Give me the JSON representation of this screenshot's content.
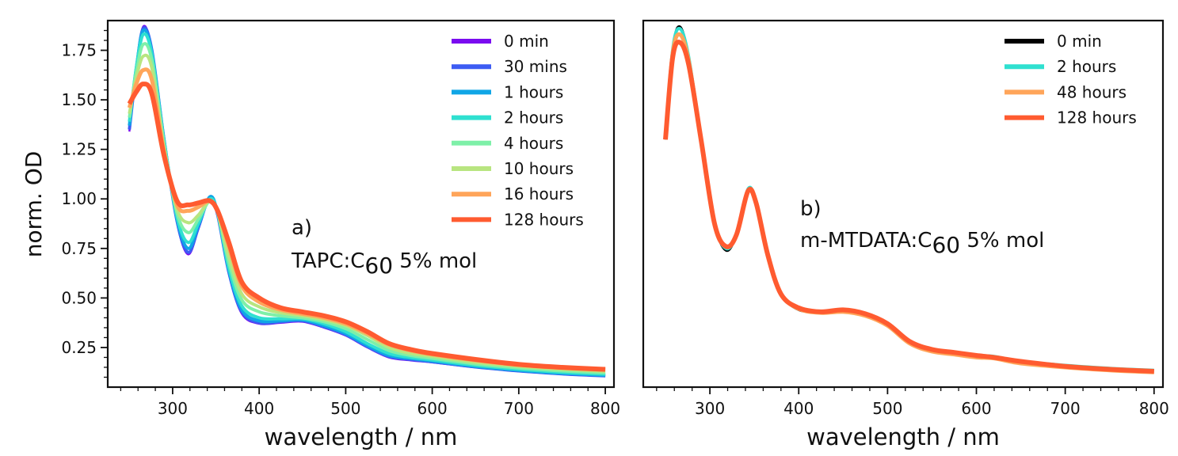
{
  "figure": {
    "ylabel": "norm. OD",
    "xlabel": "wavelength / nm"
  },
  "chart_data": [
    {
      "panel": "a",
      "type": "line",
      "label": "a)",
      "annotation_main": "TAPC:C",
      "annotation_sub": "60",
      "annotation_tail": " 5% mol",
      "xlabel": "wavelength / nm",
      "ylabel": "norm. OD",
      "xlim": [
        225,
        810
      ],
      "ylim": [
        0.05,
        1.9
      ],
      "xticks": [
        300,
        400,
        500,
        600,
        700,
        800
      ],
      "xtick_labels": [
        "300",
        "400",
        "500",
        "600",
        "700",
        "800"
      ],
      "yticks": [
        0.25,
        0.5,
        0.75,
        1.0,
        1.25,
        1.5,
        1.75
      ],
      "ytick_labels": [
        "0.25",
        "0.50",
        "0.75",
        "1.00",
        "1.25",
        "1.50",
        "1.75"
      ],
      "grid": false,
      "legend_position": "top-right",
      "x": [
        250,
        258,
        266,
        276,
        290,
        305,
        318,
        330,
        343,
        352,
        365,
        380,
        400,
        425,
        450,
        475,
        500,
        525,
        550,
        575,
        600,
        650,
        700,
        750,
        800
      ],
      "series": [
        {
          "name": "0 min",
          "color": "#7a0bf0",
          "width": 2.5,
          "values": [
            1.34,
            1.65,
            1.87,
            1.75,
            1.3,
            0.88,
            0.72,
            0.85,
            1.01,
            0.92,
            0.62,
            0.42,
            0.37,
            0.375,
            0.38,
            0.35,
            0.31,
            0.25,
            0.2,
            0.185,
            0.175,
            0.15,
            0.13,
            0.115,
            0.105
          ]
        },
        {
          "name": "30 mins",
          "color": "#3d5cf3",
          "width": 4,
          "values": [
            1.35,
            1.65,
            1.86,
            1.75,
            1.3,
            0.89,
            0.73,
            0.86,
            1.01,
            0.92,
            0.63,
            0.43,
            0.375,
            0.38,
            0.385,
            0.355,
            0.315,
            0.255,
            0.205,
            0.19,
            0.178,
            0.152,
            0.132,
            0.117,
            0.107
          ]
        },
        {
          "name": "1 hours",
          "color": "#10a6e6",
          "width": 4,
          "values": [
            1.37,
            1.66,
            1.85,
            1.74,
            1.3,
            0.9,
            0.75,
            0.87,
            1.01,
            0.93,
            0.64,
            0.44,
            0.385,
            0.385,
            0.39,
            0.36,
            0.32,
            0.26,
            0.21,
            0.195,
            0.182,
            0.155,
            0.135,
            0.12,
            0.11
          ]
        },
        {
          "name": "2 hours",
          "color": "#2fe0d0",
          "width": 4,
          "values": [
            1.39,
            1.66,
            1.83,
            1.73,
            1.29,
            0.91,
            0.78,
            0.88,
            1.0,
            0.93,
            0.65,
            0.46,
            0.4,
            0.395,
            0.395,
            0.37,
            0.33,
            0.27,
            0.22,
            0.2,
            0.187,
            0.16,
            0.14,
            0.125,
            0.115
          ]
        },
        {
          "name": "4 hours",
          "color": "#7ef0a8",
          "width": 4,
          "values": [
            1.41,
            1.64,
            1.78,
            1.7,
            1.28,
            0.93,
            0.83,
            0.9,
            0.99,
            0.93,
            0.68,
            0.49,
            0.43,
            0.41,
            0.4,
            0.38,
            0.345,
            0.29,
            0.235,
            0.21,
            0.195,
            0.167,
            0.147,
            0.132,
            0.122
          ]
        },
        {
          "name": "10 hours",
          "color": "#b8e580",
          "width": 4,
          "values": [
            1.43,
            1.61,
            1.72,
            1.66,
            1.26,
            0.95,
            0.88,
            0.92,
            0.99,
            0.93,
            0.71,
            0.52,
            0.455,
            0.425,
            0.41,
            0.39,
            0.36,
            0.31,
            0.25,
            0.22,
            0.205,
            0.175,
            0.155,
            0.14,
            0.13
          ]
        },
        {
          "name": "16 hours",
          "color": "#ffa55a",
          "width": 5,
          "values": [
            1.46,
            1.58,
            1.65,
            1.6,
            1.24,
            0.97,
            0.94,
            0.96,
            0.99,
            0.94,
            0.76,
            0.56,
            0.48,
            0.44,
            0.42,
            0.4,
            0.37,
            0.32,
            0.265,
            0.235,
            0.215,
            0.185,
            0.162,
            0.147,
            0.137
          ]
        },
        {
          "name": "128 hours",
          "color": "#ff5b30",
          "width": 6,
          "values": [
            1.48,
            1.54,
            1.58,
            1.53,
            1.22,
            0.99,
            0.97,
            0.98,
            0.99,
            0.94,
            0.78,
            0.58,
            0.5,
            0.45,
            0.43,
            0.41,
            0.38,
            0.33,
            0.27,
            0.24,
            0.22,
            0.19,
            0.165,
            0.15,
            0.14
          ]
        }
      ]
    },
    {
      "panel": "b",
      "type": "line",
      "label": "b)",
      "annotation_main": "m-MTDATA:C",
      "annotation_sub": "60",
      "annotation_tail": " 5% mol",
      "xlabel": "wavelength / nm",
      "ylabel": "",
      "xlim": [
        225,
        810
      ],
      "ylim": [
        0.05,
        1.9
      ],
      "xticks": [
        300,
        400,
        500,
        600,
        700,
        800
      ],
      "xtick_labels": [
        "300",
        "400",
        "500",
        "600",
        "700",
        "800"
      ],
      "grid": false,
      "legend_position": "top-right",
      "x": [
        250,
        258,
        266,
        276,
        290,
        305,
        318,
        330,
        343,
        352,
        365,
        380,
        400,
        425,
        450,
        475,
        500,
        525,
        550,
        575,
        600,
        620,
        650,
        700,
        750,
        800
      ],
      "series": [
        {
          "name": "0 min",
          "color": "#000000",
          "width": 3,
          "values": [
            1.3,
            1.75,
            1.87,
            1.72,
            1.3,
            0.88,
            0.74,
            0.82,
            1.05,
            0.98,
            0.72,
            0.52,
            0.44,
            0.43,
            0.44,
            0.42,
            0.37,
            0.28,
            0.24,
            0.225,
            0.21,
            0.205,
            0.18,
            0.16,
            0.145,
            0.135
          ]
        },
        {
          "name": "2 hours",
          "color": "#2fe0d0",
          "width": 4,
          "values": [
            1.3,
            1.75,
            1.86,
            1.72,
            1.3,
            0.88,
            0.75,
            0.82,
            1.05,
            0.98,
            0.72,
            0.52,
            0.445,
            0.43,
            0.44,
            0.42,
            0.37,
            0.28,
            0.24,
            0.225,
            0.21,
            0.205,
            0.18,
            0.16,
            0.145,
            0.135
          ]
        },
        {
          "name": "48 hours",
          "color": "#ffa55a",
          "width": 5,
          "values": [
            1.3,
            1.73,
            1.83,
            1.7,
            1.3,
            0.88,
            0.76,
            0.82,
            1.04,
            0.98,
            0.72,
            0.52,
            0.445,
            0.425,
            0.43,
            0.41,
            0.36,
            0.27,
            0.23,
            0.215,
            0.2,
            0.195,
            0.17,
            0.15,
            0.135,
            0.125
          ]
        },
        {
          "name": "128 hours",
          "color": "#ff5b30",
          "width": 6,
          "values": [
            1.3,
            1.71,
            1.79,
            1.68,
            1.3,
            0.88,
            0.76,
            0.82,
            1.04,
            0.98,
            0.72,
            0.52,
            0.45,
            0.43,
            0.44,
            0.42,
            0.37,
            0.28,
            0.24,
            0.225,
            0.21,
            0.2,
            0.18,
            0.155,
            0.14,
            0.13
          ]
        }
      ]
    }
  ]
}
